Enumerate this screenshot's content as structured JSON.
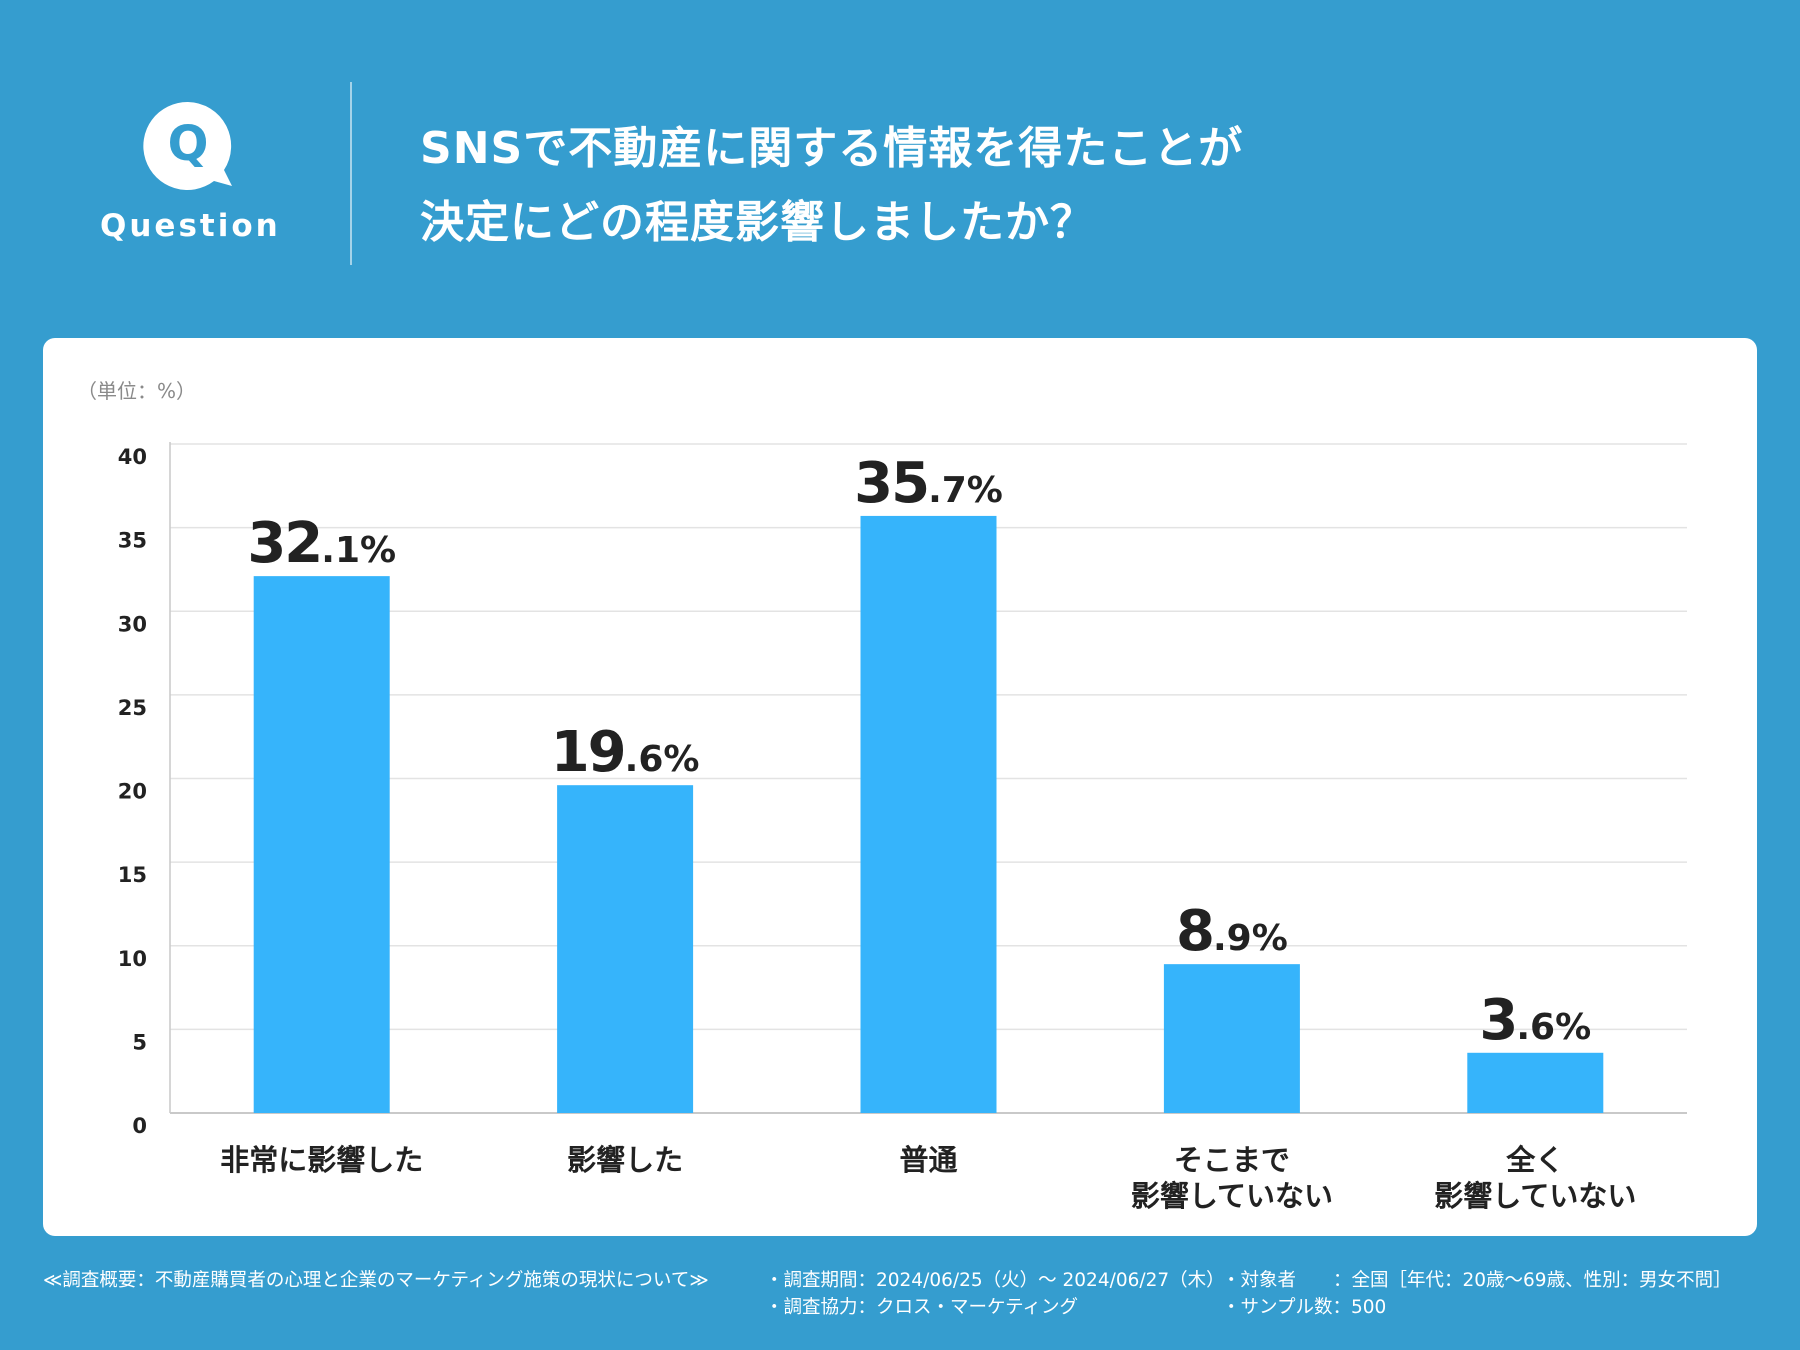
{
  "header": {
    "badge_letter": "Q",
    "badge_label": "Question",
    "title_lines": [
      "SNSで不動産に関する情報を得たことが",
      "決定にどの程度影響しましたか？"
    ]
  },
  "chart_data": {
    "type": "bar",
    "unit_label": "（単位：%）",
    "categories": [
      [
        "非常に影響した"
      ],
      [
        "影響した"
      ],
      [
        "普通"
      ],
      [
        "そこまで",
        "影響していない"
      ],
      [
        "全く",
        "影響していない"
      ]
    ],
    "values": [
      32.1,
      19.6,
      35.7,
      8.9,
      3.6
    ],
    "value_labels": [
      {
        "int": "32",
        "dec": ".1%"
      },
      {
        "int": "19",
        "dec": ".6%"
      },
      {
        "int": "35",
        "dec": ".7%"
      },
      {
        "int": "8",
        "dec": ".9%"
      },
      {
        "int": "3",
        "dec": ".6%"
      }
    ],
    "y_ticks": [
      "0",
      "5",
      "10",
      "15",
      "20",
      "25",
      "30",
      "35",
      "40"
    ],
    "ylim": [
      0,
      40
    ],
    "grid": true,
    "colors": {
      "bar": "#36B4FB",
      "grid": "#e3e3e3",
      "axis": "#c9c9c9",
      "text": "#222222"
    }
  },
  "footer": {
    "overview": "≪調査概要：不動産購買者の心理と企業のマーケティング施策の現状について≫",
    "period": "・調査期間：2024/06/25（火）〜 2024/06/27（木）",
    "cooperation": "・調査協力：クロス・マーケティング",
    "target": "・対象者　　：全国［年代：20歳〜69歳、性別：男女不問］",
    "sample": "・サンプル数：500"
  }
}
